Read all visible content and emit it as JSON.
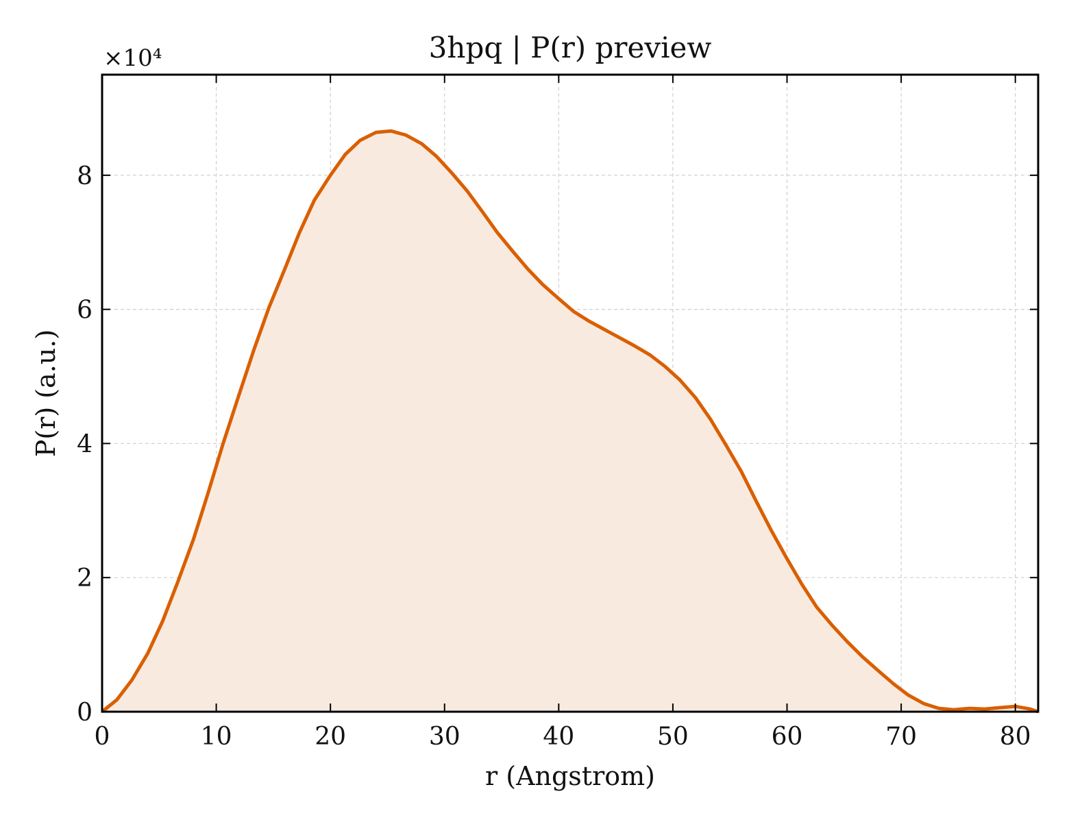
{
  "chart_data": {
    "type": "area",
    "title": "3hpq | P(r) preview",
    "xlabel": "r (Angstrom)",
    "ylabel": "P(r) (a.u.)",
    "y_multiplier_label": "×10⁴",
    "xlim": [
      0,
      82
    ],
    "ylim": [
      0,
      9.5
    ],
    "x_ticks": [
      0,
      10,
      20,
      30,
      40,
      50,
      60,
      70,
      80
    ],
    "y_ticks": [
      0,
      2,
      4,
      6,
      8
    ],
    "grid": true,
    "line_color": "#d95f02",
    "fill_color": "#f9eadf",
    "series": [
      {
        "x": [
          0,
          1.3,
          2.6,
          4,
          5.3,
          6.6,
          8,
          9.3,
          10.6,
          12,
          13.3,
          14.6,
          16,
          17.3,
          18.6,
          20,
          21.3,
          22.6,
          24,
          25.3,
          26.6,
          28,
          29.3,
          30.6,
          32,
          33.3,
          34.6,
          36,
          37.3,
          38.6,
          40,
          41.3,
          42.6,
          44,
          45.3,
          46.6,
          48,
          49.3,
          50.6,
          52,
          53.3,
          54.6,
          56,
          57.3,
          58.6,
          60,
          61.3,
          62.6,
          64,
          65.3,
          66.6,
          68,
          69.3,
          70.6,
          72,
          73.3,
          74.6,
          76,
          77.3,
          78.6,
          80,
          81.3,
          82
        ],
        "y": [
          0,
          0.18,
          0.47,
          0.87,
          1.35,
          1.92,
          2.57,
          3.27,
          4.0,
          4.73,
          5.4,
          6.02,
          6.6,
          7.15,
          7.63,
          8.0,
          8.31,
          8.52,
          8.64,
          8.66,
          8.6,
          8.47,
          8.28,
          8.04,
          7.76,
          7.46,
          7.15,
          6.86,
          6.6,
          6.37,
          6.16,
          5.97,
          5.83,
          5.7,
          5.58,
          5.46,
          5.32,
          5.15,
          4.95,
          4.68,
          4.36,
          3.99,
          3.58,
          3.14,
          2.71,
          2.28,
          1.9,
          1.56,
          1.28,
          1.04,
          0.82,
          0.61,
          0.42,
          0.25,
          0.12,
          0.05,
          0.03,
          0.05,
          0.04,
          0.06,
          0.08,
          0.04,
          0
        ]
      }
    ]
  }
}
